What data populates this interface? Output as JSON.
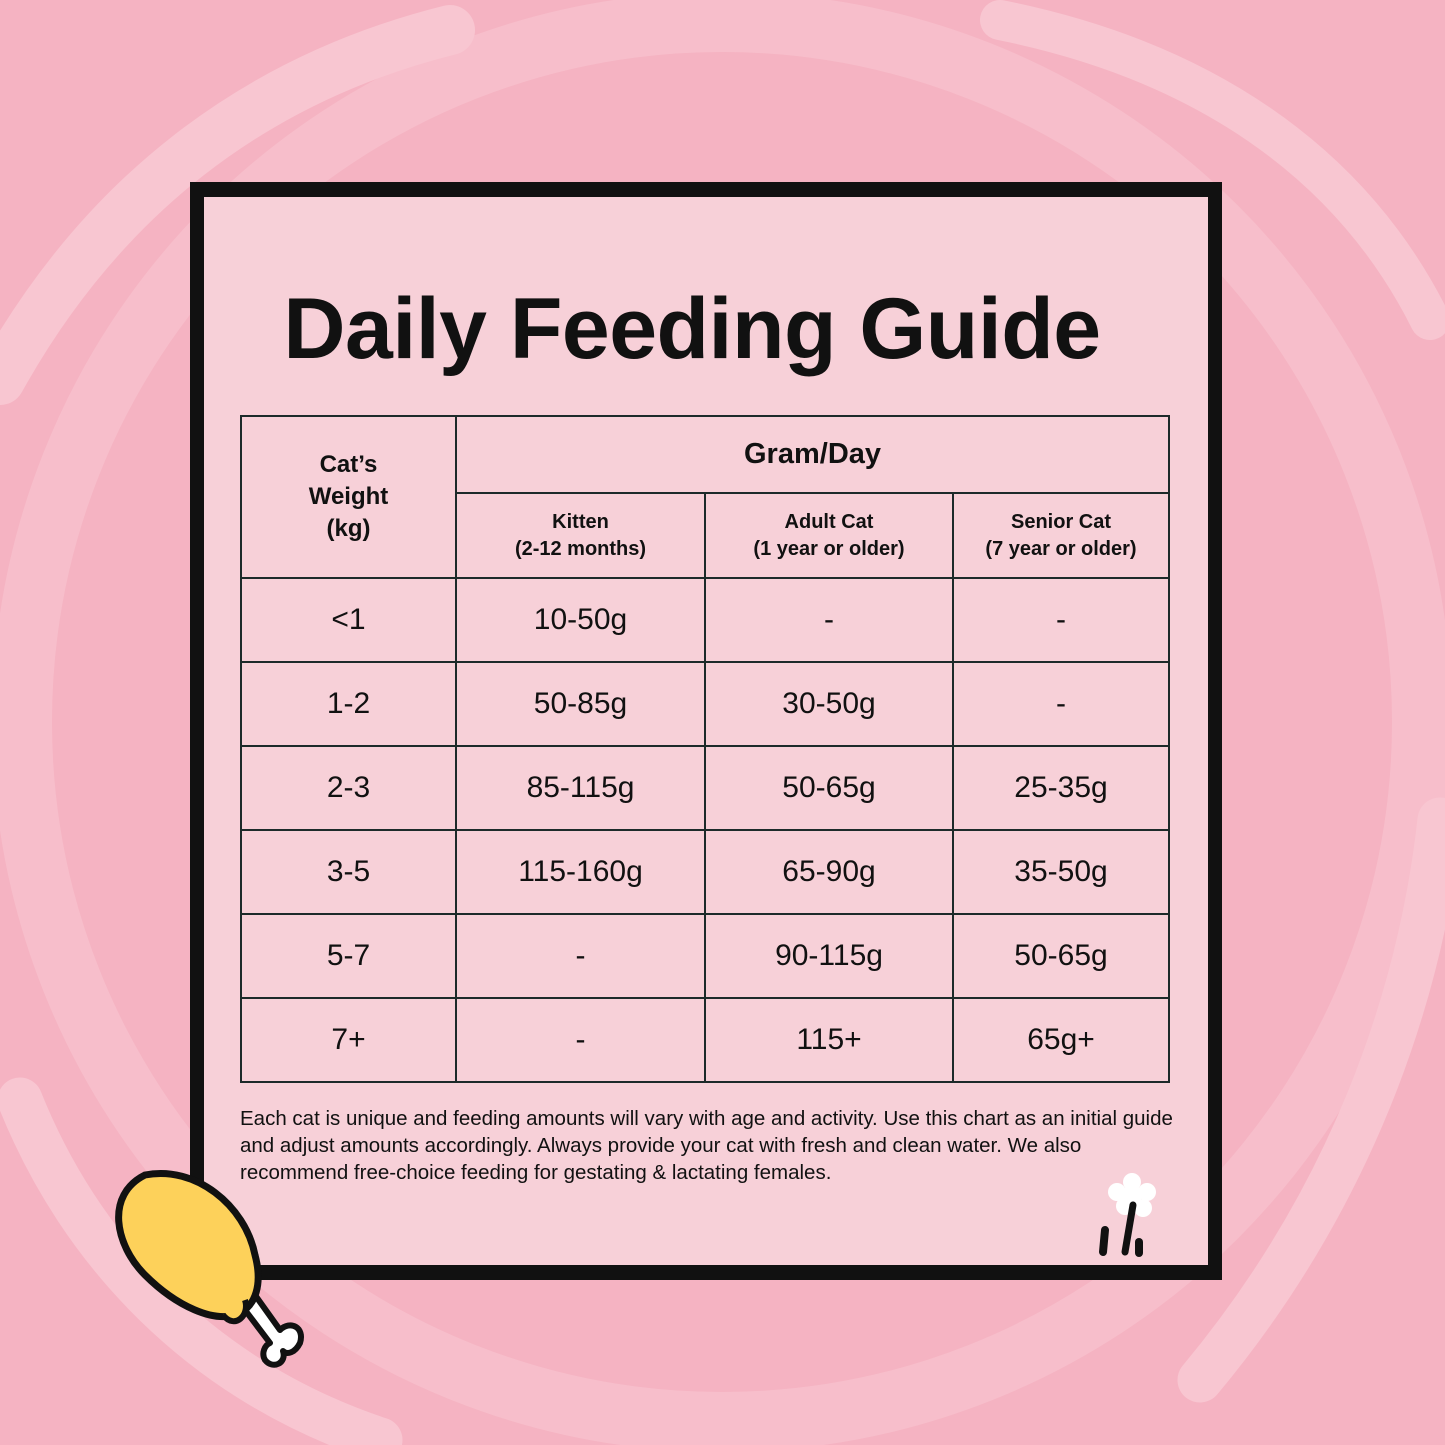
{
  "title": "Daily Feeding Guide",
  "table": {
    "weight_header": [
      "Cat’s",
      "Weight",
      "(kg)"
    ],
    "group_header": "Gram/Day",
    "columns": [
      {
        "name": "Kitten",
        "note": "(2-12 months)"
      },
      {
        "name": "Adult Cat",
        "note": "(1 year or older)"
      },
      {
        "name": "Senior Cat",
        "note": "(7 year or older)"
      }
    ],
    "rows": [
      [
        "<1",
        "10-50g",
        "-",
        "-"
      ],
      [
        "1-2",
        "50-85g",
        "30-50g",
        "-"
      ],
      [
        "2-3",
        "85-115g",
        "50-65g",
        "25-35g"
      ],
      [
        "3-5",
        "115-160g",
        "65-90g",
        "35-50g"
      ],
      [
        "5-7",
        "-",
        "90-115g",
        "50-65g"
      ],
      [
        "7+",
        "-",
        "115+",
        "65g+"
      ]
    ]
  },
  "footnote": "Each cat is unique and feeding amounts will vary with age and activity. Use this chart as an initial guide and adjust amounts accordingly. Always provide your cat with fresh and clean water. We also recommend free-choice feeding for gestating & lactating females.",
  "colors": {
    "background": "#f5b3c2",
    "card": "#f7d0d8",
    "border": "#111111",
    "drumstick": "#fdd15a"
  },
  "icons": [
    "drumstick-icon",
    "flower-logo-icon"
  ]
}
